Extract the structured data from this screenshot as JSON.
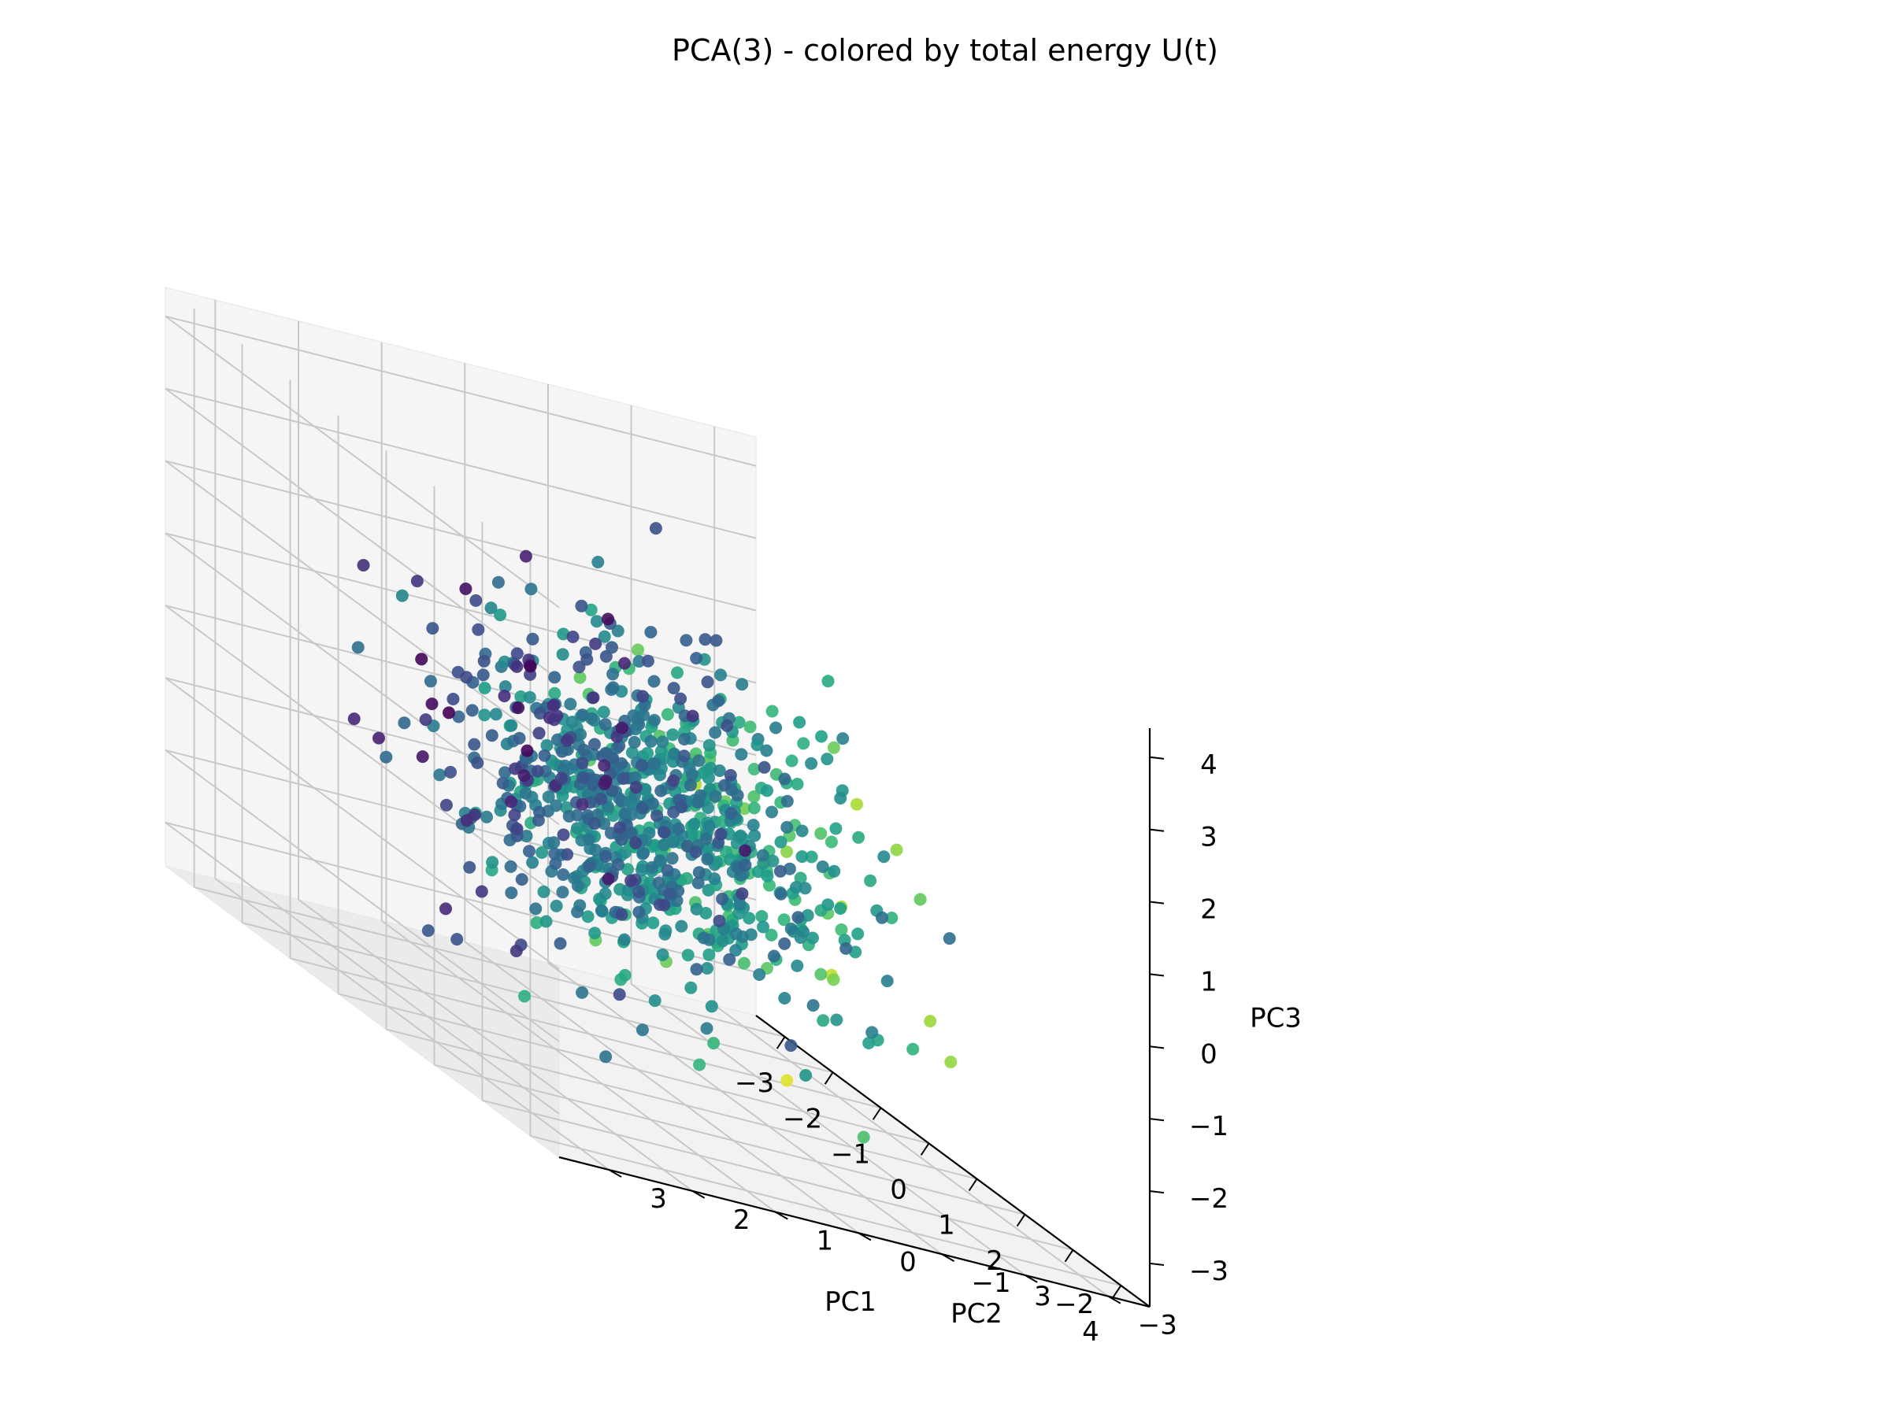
{
  "chart_data": {
    "type": "scatter3d",
    "title": "PCA(3) - colored by total energy U(t)",
    "xlabel": "PC1",
    "ylabel": "PC2",
    "zlabel": "PC3",
    "xticks": [
      "−3",
      "−2",
      "−1",
      "0",
      "1",
      "2",
      "3",
      "4"
    ],
    "yticks": [
      "−3",
      "−2",
      "−1",
      "0",
      "1",
      "2",
      "3"
    ],
    "zticks": [
      "−3",
      "−2",
      "−1",
      "0",
      "1",
      "2",
      "3",
      "4"
    ],
    "xlim": [
      -3.6,
      4.6
    ],
    "ylim": [
      -3.5,
      3.6
    ],
    "zlim": [
      -3.6,
      4.4
    ],
    "grid": true,
    "colormap": "viridis",
    "color_variable": "total energy U(t)",
    "pane_color": "#f2f2f2",
    "grid_color": "#c8c8c8",
    "point_count_approx": 900,
    "points_note": "approx. 900 points, roughly Gaussian cloud centered near origin; color increases with PC1",
    "x": [
      -3.1,
      -2.9,
      -2.7,
      -2.4,
      -2.2,
      -2.0,
      -1.8,
      -1.6,
      -1.5,
      -1.3,
      -1.2,
      -1.0,
      -0.9,
      -0.7,
      -0.5,
      -0.3,
      -0.1,
      0.1,
      0.3,
      0.5,
      0.7,
      0.9,
      1.1,
      1.3,
      1.5,
      1.7,
      2.0,
      2.3,
      2.6,
      3.0,
      3.4,
      3.8,
      -1.9,
      -1.1,
      -0.4,
      0.2,
      0.8,
      1.4,
      2.1,
      2.8,
      -2.5,
      -1.4,
      -0.6,
      0.4,
      1.2,
      1.9,
      2.4,
      -0.8,
      0.0,
      0.6,
      1.0,
      1.6,
      -1.7,
      -0.2,
      0.9,
      2.2,
      1.8,
      -2.1,
      -1.2,
      0.5,
      1.3,
      0.1,
      -0.5,
      2.5,
      3.2
    ],
    "y": [
      -0.5,
      0.8,
      -1.4,
      1.2,
      -0.3,
      0.9,
      -1.7,
      0.4,
      1.6,
      -0.8,
      0.2,
      -2.1,
      1.1,
      -0.6,
      0.7,
      -1.3,
      0.3,
      1.9,
      -0.9,
      0.5,
      -1.5,
      1.4,
      -0.2,
      0.8,
      -1.1,
      0.6,
      -0.4,
      1.0,
      -0.7,
      0.2,
      -1.8,
      0.4,
      2.2,
      -2.4,
      2.6,
      -2.7,
      2.3,
      -2.5,
      1.8,
      -1.9,
      -0.1,
      1.5,
      -1.6,
      0.9,
      -0.3,
      1.3,
      -0.9,
      2.9,
      -3.0,
      2.0,
      -2.2,
      0.1,
      -1.2,
      1.7,
      -1.5,
      0.6,
      2.4,
      1.9,
      -0.5,
      -2.0,
      2.7,
      0.0,
      -0.8,
      1.1,
      -0.6
    ],
    "z": [
      0.6,
      -0.2,
      1.1,
      -0.8,
      0.3,
      -1.4,
      0.9,
      -0.5,
      1.3,
      0.2,
      -1.0,
      0.7,
      -0.4,
      1.6,
      -1.2,
      0.5,
      -0.1,
      0.8,
      -0.9,
      1.2,
      -0.3,
      0.4,
      -1.6,
      0.9,
      -0.6,
      1.5,
      -1.1,
      0.3,
      -0.8,
      0.7,
      -1.3,
      -2.0,
      1.8,
      -1.7,
      2.0,
      -2.2,
      1.4,
      -1.9,
      2.1,
      -1.0,
      2.3,
      -2.5,
      1.9,
      -2.6,
      2.2,
      -1.8,
      0.0,
      1.0,
      -1.5,
      2.4,
      -2.1,
      0.5,
      3.4,
      -0.7,
      -2.8,
      1.6,
      -2.4,
      -0.6,
      -1.9,
      2.6,
      -0.2,
      -3.0,
      0.1,
      -1.2,
      0.4
    ],
    "color_range": [
      0,
      1
    ]
  }
}
